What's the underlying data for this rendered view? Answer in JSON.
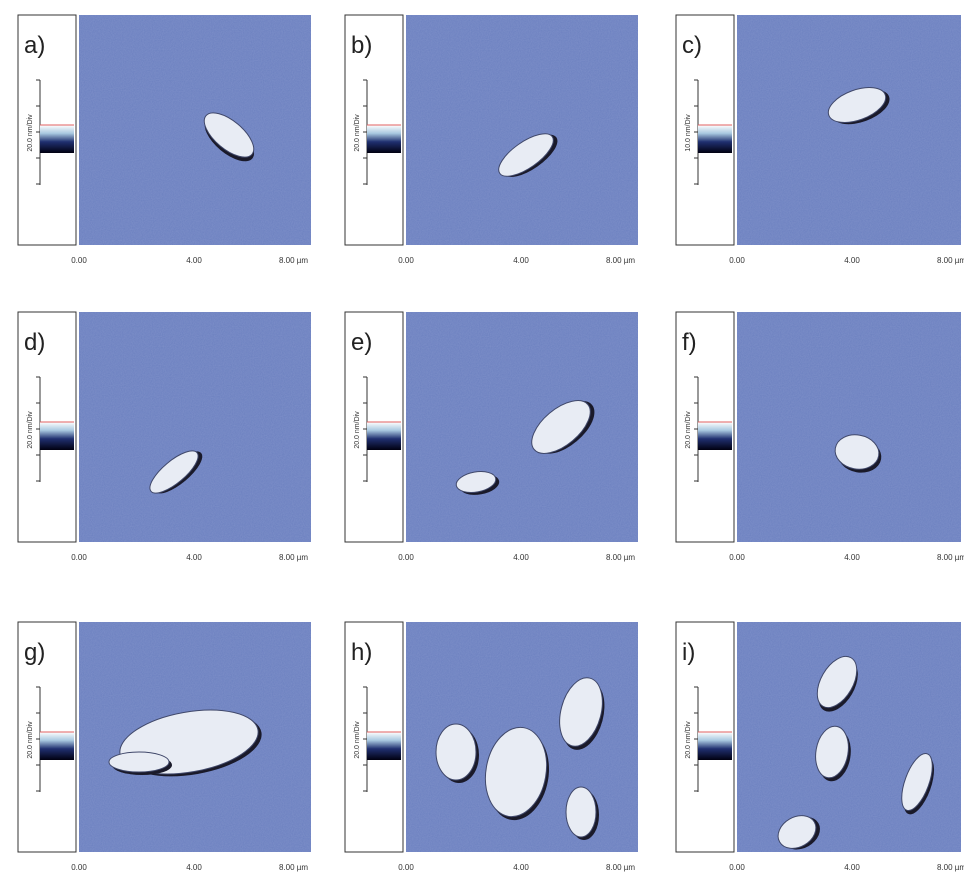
{
  "panels": [
    {
      "label": "a)",
      "scale": "20.0 nm/Div",
      "x_labels": [
        "0.00",
        "4.00",
        "8.00 µm"
      ]
    },
    {
      "label": "b)",
      "scale": "20.0 nm/Div",
      "x_labels": [
        "0.00",
        "4.00",
        "8.00 µm"
      ]
    },
    {
      "label": "c)",
      "scale": "10.0 nm/Div",
      "x_labels": [
        "0.00",
        "4.00",
        "8.00 µm"
      ]
    },
    {
      "label": "d)",
      "scale": "20.0 nm/Div",
      "x_labels": [
        "0.00",
        "4.00",
        "8.00 µm"
      ]
    },
    {
      "label": "e)",
      "scale": "20.0 nm/Div",
      "x_labels": [
        "0.00",
        "4.00",
        "8.00 µm"
      ]
    },
    {
      "label": "f)",
      "scale": "20.0 nm/Div",
      "x_labels": [
        "0.00",
        "4.00",
        "8.00 µm"
      ]
    },
    {
      "label": "g)",
      "scale": "20.0 nm/Div",
      "x_labels": [
        "0.00",
        "4.00",
        "8.00 µm"
      ]
    },
    {
      "label": "h)",
      "scale": "20.0 nm/Div",
      "x_labels": [
        "0.00",
        "4.00",
        "8.00 µm"
      ]
    },
    {
      "label": "i)",
      "scale": "20.0 nm/Div",
      "x_labels": [
        "0.00",
        "4.00",
        "8.00 µm"
      ]
    }
  ]
}
